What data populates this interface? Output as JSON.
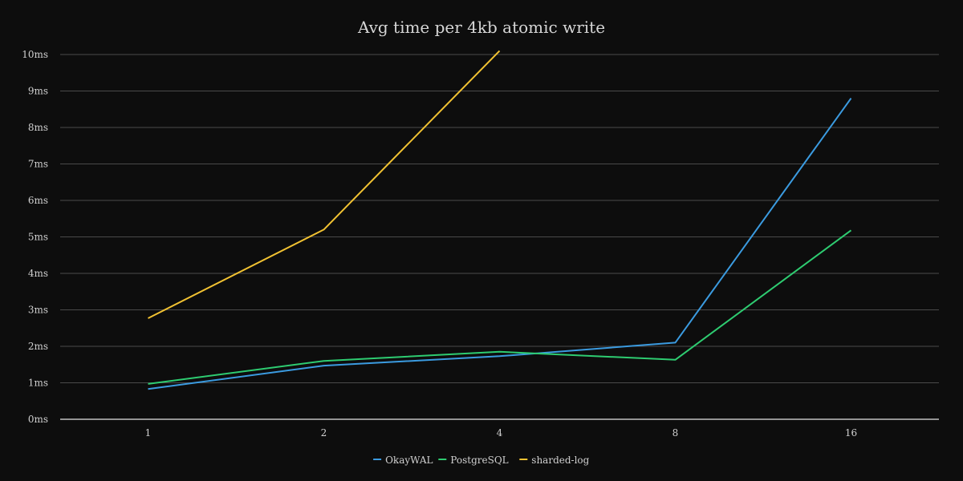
{
  "chart_data": {
    "type": "line",
    "title": "Avg time per 4kb atomic write",
    "xlabel": "",
    "ylabel": "",
    "categories": [
      "1",
      "2",
      "4",
      "8",
      "16"
    ],
    "y_ticks": [
      "0ms",
      "1ms",
      "2ms",
      "3ms",
      "4ms",
      "5ms",
      "6ms",
      "7ms",
      "8ms",
      "9ms",
      "10ms"
    ],
    "ylim": [
      0,
      10
    ],
    "grid": true,
    "legend_position": "bottom-center",
    "series": [
      {
        "name": "OkayWAL",
        "color": "#3b9be0",
        "values": [
          0.83,
          1.47,
          1.73,
          2.1,
          8.8
        ]
      },
      {
        "name": "PostgreSQL",
        "color": "#2ecc71",
        "values": [
          0.97,
          1.6,
          1.85,
          1.63,
          5.18
        ]
      },
      {
        "name": "sharded-log",
        "color": "#f1c232",
        "values": [
          2.77,
          5.2,
          10.1,
          null,
          null
        ]
      }
    ]
  }
}
